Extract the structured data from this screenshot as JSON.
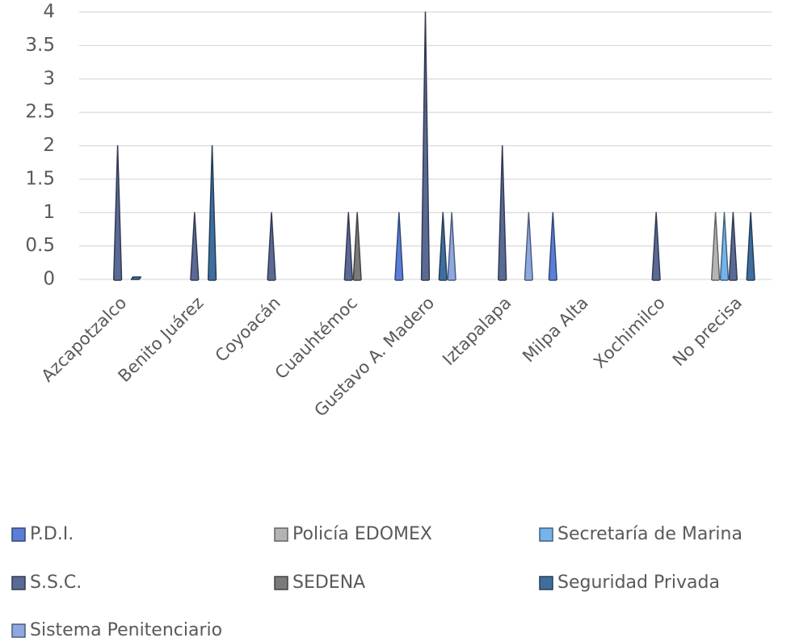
{
  "chart_data": {
    "type": "pyramid",
    "categories": [
      "Azcapotzalco",
      "Benito Juárez",
      "Coyoacán",
      "Cuauhtémoc",
      "Gustavo A. Madero",
      "Iztapalapa",
      "Milpa Alta",
      "Xochimilco",
      "No precisa"
    ],
    "series": [
      {
        "name": "P.D.I.",
        "color": "#5b7fd6",
        "values": [
          null,
          null,
          null,
          null,
          1,
          null,
          1,
          null,
          null
        ]
      },
      {
        "name": "Policía EDOMEX",
        "color": "#b4b4b4",
        "values": [
          null,
          null,
          null,
          null,
          null,
          null,
          null,
          null,
          1
        ]
      },
      {
        "name": "Secretaría de Marina",
        "color": "#75b3ea",
        "values": [
          null,
          null,
          null,
          null,
          null,
          null,
          null,
          null,
          1
        ]
      },
      {
        "name": "S.S.C.",
        "color": "#5a6a94",
        "values": [
          2,
          1,
          1,
          1,
          4,
          2,
          null,
          1,
          1
        ]
      },
      {
        "name": "SEDENA",
        "color": "#7a7a7a",
        "values": [
          null,
          null,
          null,
          1,
          null,
          null,
          null,
          null,
          null
        ]
      },
      {
        "name": "Seguridad Privada",
        "color": "#3f6e9e",
        "values": [
          0,
          2,
          null,
          null,
          1,
          null,
          null,
          null,
          1
        ]
      },
      {
        "name": "Sistema Penitenciario",
        "color": "#8fa8e0",
        "values": [
          null,
          null,
          null,
          null,
          1,
          1,
          null,
          null,
          null
        ]
      }
    ],
    "ylim": [
      0,
      4
    ],
    "yticks": [
      0,
      0.5,
      1,
      1.5,
      2,
      2.5,
      3,
      3.5,
      4
    ],
    "grid": true
  }
}
